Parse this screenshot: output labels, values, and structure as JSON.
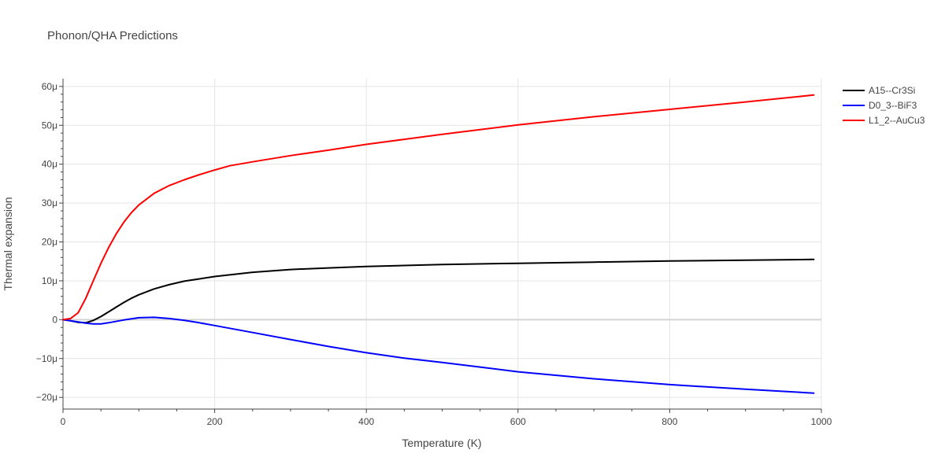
{
  "chart_data": {
    "type": "line",
    "title": "Phonon/QHA Predictions",
    "xlabel": "Temperature (K)",
    "ylabel": "Thermal expansion",
    "xlim": [
      0,
      1000
    ],
    "ylim": [
      -23,
      62
    ],
    "x_ticks": [
      0,
      200,
      400,
      600,
      800,
      1000
    ],
    "x_tick_labels": [
      "0",
      "200",
      "400",
      "600",
      "800",
      "1000"
    ],
    "y_ticks": [
      -20,
      -10,
      0,
      10,
      20,
      30,
      40,
      50,
      60
    ],
    "y_tick_labels": [
      "−20μ",
      "−10μ",
      "0",
      "10μ",
      "20μ",
      "30μ",
      "40μ",
      "50μ",
      "60μ"
    ],
    "y_unit_note": "values in units of 1e-6 (μ)",
    "grid": true,
    "legend_position": "top-right",
    "series": [
      {
        "name": "A15--Cr3Si",
        "color": "#000000",
        "points": [
          [
            0,
            0
          ],
          [
            10,
            -0.3
          ],
          [
            20,
            -0.7
          ],
          [
            30,
            -0.8
          ],
          [
            40,
            -0.2
          ],
          [
            50,
            0.8
          ],
          [
            60,
            2
          ],
          [
            70,
            3.2
          ],
          [
            80,
            4.4
          ],
          [
            90,
            5.5
          ],
          [
            100,
            6.4
          ],
          [
            120,
            7.9
          ],
          [
            140,
            9
          ],
          [
            160,
            9.9
          ],
          [
            180,
            10.5
          ],
          [
            200,
            11.1
          ],
          [
            250,
            12.2
          ],
          [
            300,
            12.9
          ],
          [
            350,
            13.3
          ],
          [
            400,
            13.7
          ],
          [
            500,
            14.2
          ],
          [
            600,
            14.5
          ],
          [
            700,
            14.8
          ],
          [
            800,
            15.1
          ],
          [
            900,
            15.3
          ],
          [
            990,
            15.5
          ]
        ]
      },
      {
        "name": "D0_3--BiF3",
        "color": "#0000ff",
        "points": [
          [
            0,
            0
          ],
          [
            10,
            -0.3
          ],
          [
            20,
            -0.6
          ],
          [
            30,
            -0.9
          ],
          [
            40,
            -1.1
          ],
          [
            50,
            -1.1
          ],
          [
            60,
            -0.8
          ],
          [
            80,
            -0.1
          ],
          [
            100,
            0.5
          ],
          [
            120,
            0.6
          ],
          [
            140,
            0.3
          ],
          [
            160,
            -0.2
          ],
          [
            180,
            -0.8
          ],
          [
            200,
            -1.5
          ],
          [
            250,
            -3.3
          ],
          [
            300,
            -5.1
          ],
          [
            350,
            -6.9
          ],
          [
            400,
            -8.5
          ],
          [
            450,
            -9.9
          ],
          [
            500,
            -11
          ],
          [
            550,
            -12.2
          ],
          [
            600,
            -13.4
          ],
          [
            700,
            -15.2
          ],
          [
            800,
            -16.7
          ],
          [
            900,
            -17.9
          ],
          [
            990,
            -18.9
          ]
        ]
      },
      {
        "name": "L1_2--AuCu3",
        "color": "#ff0000",
        "points": [
          [
            0,
            0
          ],
          [
            10,
            0.3
          ],
          [
            20,
            1.8
          ],
          [
            30,
            5.5
          ],
          [
            40,
            10
          ],
          [
            50,
            14.5
          ],
          [
            60,
            18.5
          ],
          [
            70,
            22
          ],
          [
            80,
            25
          ],
          [
            90,
            27.5
          ],
          [
            100,
            29.5
          ],
          [
            120,
            32.5
          ],
          [
            140,
            34.5
          ],
          [
            160,
            36
          ],
          [
            180,
            37.3
          ],
          [
            200,
            38.5
          ],
          [
            220,
            39.6
          ],
          [
            250,
            40.6
          ],
          [
            300,
            42.2
          ],
          [
            350,
            43.6
          ],
          [
            400,
            45.1
          ],
          [
            450,
            46.4
          ],
          [
            500,
            47.7
          ],
          [
            550,
            48.9
          ],
          [
            600,
            50.1
          ],
          [
            700,
            52.2
          ],
          [
            800,
            54.1
          ],
          [
            900,
            56
          ],
          [
            990,
            57.8
          ]
        ]
      }
    ]
  }
}
